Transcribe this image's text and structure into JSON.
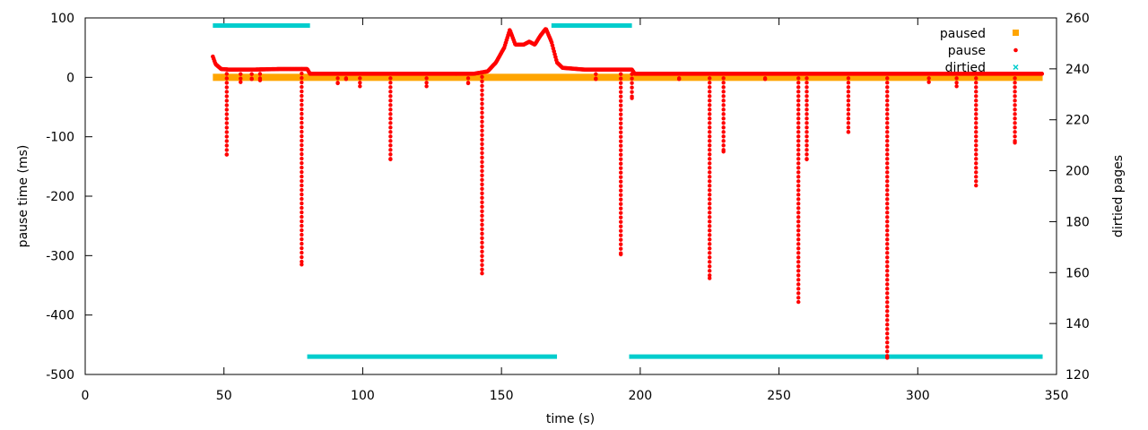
{
  "chart_data": {
    "type": "scatter",
    "xlabel": "time (s)",
    "ylabel": "pause time (ms)",
    "y2label": "dirtied pages",
    "xlim": [
      0,
      350
    ],
    "ylim": [
      -500,
      100
    ],
    "y2lim": [
      120,
      260
    ],
    "xticks": [
      0,
      50,
      100,
      150,
      200,
      250,
      300,
      350
    ],
    "yticks": [
      -500,
      -400,
      -300,
      -200,
      -100,
      0,
      100
    ],
    "y2ticks": [
      120,
      140,
      160,
      180,
      200,
      220,
      240,
      260
    ],
    "legend_position": "top-right",
    "colors": {
      "paused": "#FFA500",
      "pause": "#FF0000",
      "dirtied": "#00CDCD"
    },
    "series": [
      {
        "name": "paused",
        "axis": "y",
        "marker": "square",
        "segments": [
          {
            "x": [
              46,
              345
            ],
            "y": 0
          }
        ]
      },
      {
        "name": "pause",
        "axis": "y",
        "marker": "dot",
        "baseline": [
          [
            46,
            35
          ],
          [
            47,
            22
          ],
          [
            49,
            14
          ],
          [
            52,
            13
          ],
          [
            60,
            13
          ],
          [
            70,
            14
          ],
          [
            80,
            14
          ],
          [
            81,
            6
          ],
          [
            100,
            6
          ],
          [
            120,
            6
          ],
          [
            140,
            6
          ],
          [
            145,
            10
          ],
          [
            148,
            25
          ],
          [
            151,
            50
          ],
          [
            153,
            80
          ],
          [
            155,
            55
          ],
          [
            158,
            55
          ],
          [
            160,
            60
          ],
          [
            162,
            55
          ],
          [
            164,
            70
          ],
          [
            166,
            82
          ],
          [
            168,
            60
          ],
          [
            170,
            25
          ],
          [
            172,
            16
          ],
          [
            180,
            13
          ],
          [
            190,
            13
          ],
          [
            197,
            13
          ],
          [
            198,
            6
          ],
          [
            220,
            6
          ],
          [
            250,
            6
          ],
          [
            280,
            6
          ],
          [
            300,
            6
          ],
          [
            320,
            6
          ],
          [
            345,
            6
          ]
        ],
        "drops": [
          [
            51,
            -130
          ],
          [
            56,
            -8
          ],
          [
            60,
            -3
          ],
          [
            63,
            -5
          ],
          [
            78,
            -315
          ],
          [
            91,
            -10
          ],
          [
            94,
            -3
          ],
          [
            99,
            -15
          ],
          [
            110,
            -138
          ],
          [
            123,
            -15
          ],
          [
            138,
            -10
          ],
          [
            143,
            -330
          ],
          [
            184,
            -3
          ],
          [
            193,
            -298
          ],
          [
            197,
            -35
          ],
          [
            214,
            -3
          ],
          [
            225,
            -338
          ],
          [
            230,
            -125
          ],
          [
            245,
            -3
          ],
          [
            257,
            -378
          ],
          [
            260,
            -138
          ],
          [
            275,
            -92
          ],
          [
            289,
            -472
          ],
          [
            304,
            -8
          ],
          [
            314,
            -15
          ],
          [
            321,
            -182
          ],
          [
            335,
            -110
          ]
        ]
      },
      {
        "name": "dirtied",
        "axis": "y2",
        "marker": "cross",
        "segments": [
          {
            "x": [
              46,
              81
            ],
            "y": 257
          },
          {
            "x": [
              80,
              170
            ],
            "y": 127
          },
          {
            "x": [
              168,
              197
            ],
            "y": 257
          },
          {
            "x": [
              196,
              345
            ],
            "y": 127
          }
        ]
      }
    ]
  }
}
